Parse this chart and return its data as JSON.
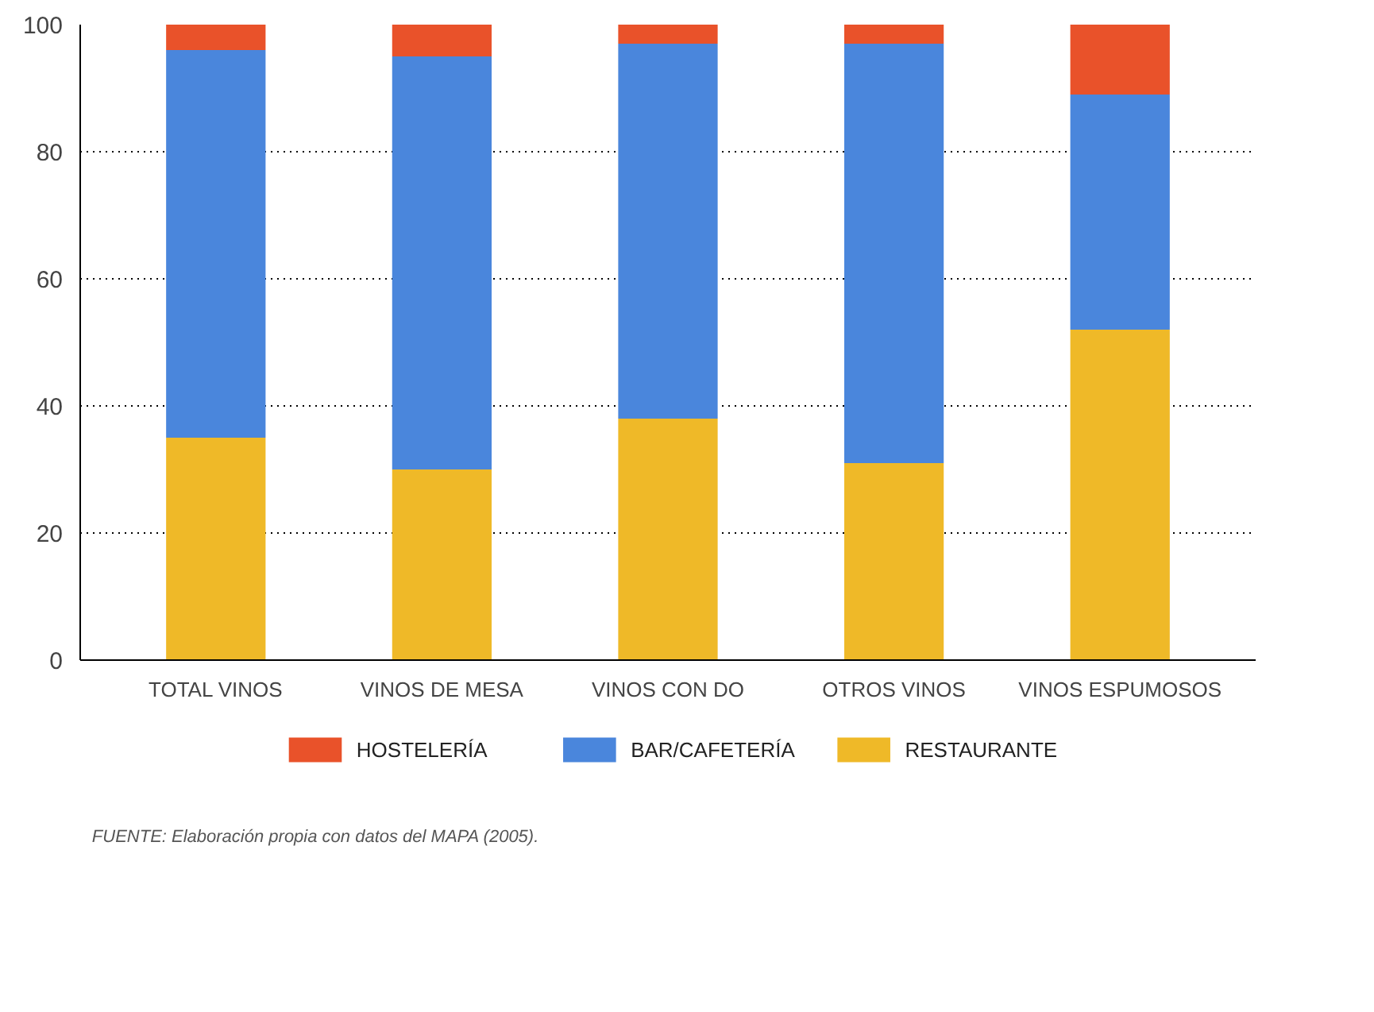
{
  "chart_data": {
    "type": "bar",
    "stacked": true,
    "categories": [
      "TOTAL VINOS",
      "VINOS DE MESA",
      "VINOS CON DO",
      "OTROS VINOS",
      "VINOS ESPUMOSOS"
    ],
    "series": [
      {
        "name": "RESTAURANTE",
        "color": "#efb928",
        "values": [
          35,
          30,
          38,
          31,
          52
        ]
      },
      {
        "name": "BAR/CAFETERÍA",
        "color": "#4a86dc",
        "values": [
          61,
          65,
          59,
          66,
          37
        ]
      },
      {
        "name": "HOSTELERÍA",
        "color": "#e9522a",
        "values": [
          4,
          5,
          3,
          3,
          11
        ]
      }
    ],
    "ylim": [
      0,
      100
    ],
    "yticks": [
      0,
      20,
      40,
      60,
      80,
      100
    ],
    "grid": "y",
    "legend": "bottom",
    "annotations": [
      "FUENTE: Elaboración propia con datos del MAPA (2005)."
    ]
  }
}
